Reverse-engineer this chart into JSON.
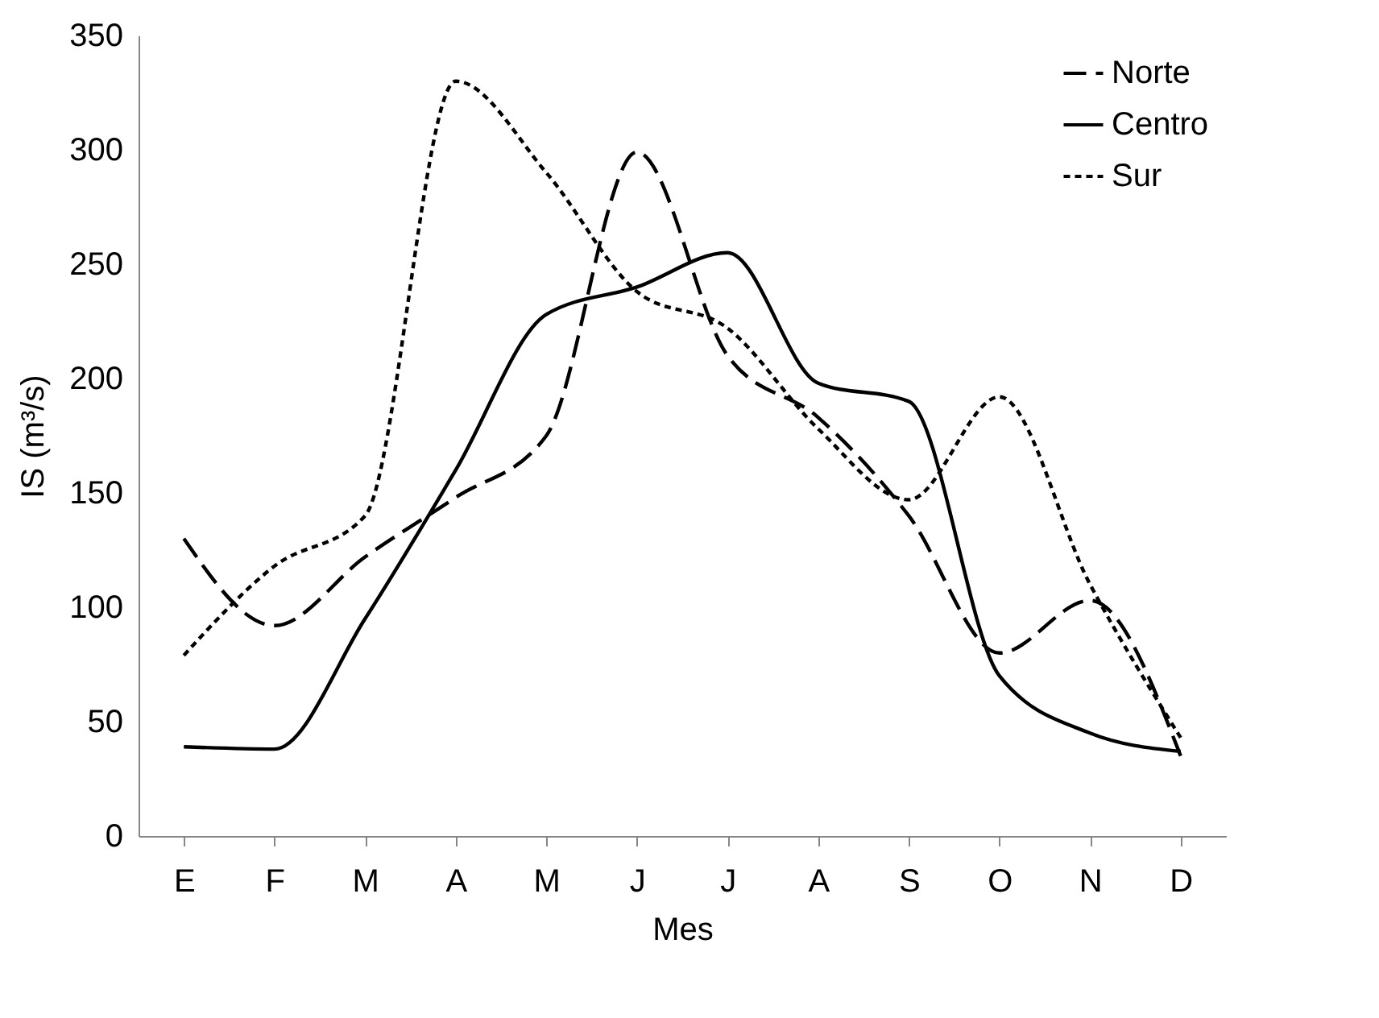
{
  "chart_data": {
    "type": "line",
    "xlabel": "Mes",
    "ylabel": "IS (m³/s)",
    "categories": [
      "E",
      "F",
      "M",
      "A",
      "M",
      "J",
      "J",
      "A",
      "S",
      "O",
      "N",
      "D"
    ],
    "series": [
      {
        "name": "Norte",
        "color": "#000000",
        "line_style": "dashed",
        "values": [
          130,
          92,
          122,
          148,
          175,
          299,
          210,
          183,
          140,
          80,
          103,
          35
        ]
      },
      {
        "name": "Centro",
        "color": "#000000",
        "line_style": "solid",
        "values": [
          39,
          38,
          95,
          160,
          228,
          240,
          255,
          198,
          190,
          70,
          45,
          37
        ]
      },
      {
        "name": "Sur",
        "color": "#000000",
        "line_style": "dotted",
        "values": [
          79,
          118,
          140,
          330,
          290,
          238,
          222,
          178,
          147,
          192,
          110,
          43
        ]
      }
    ],
    "ylim": [
      0,
      350
    ],
    "yticks": [
      0,
      50,
      100,
      150,
      200,
      250,
      300,
      350
    ],
    "grid": false,
    "legend": "top right",
    "marker": "none"
  }
}
